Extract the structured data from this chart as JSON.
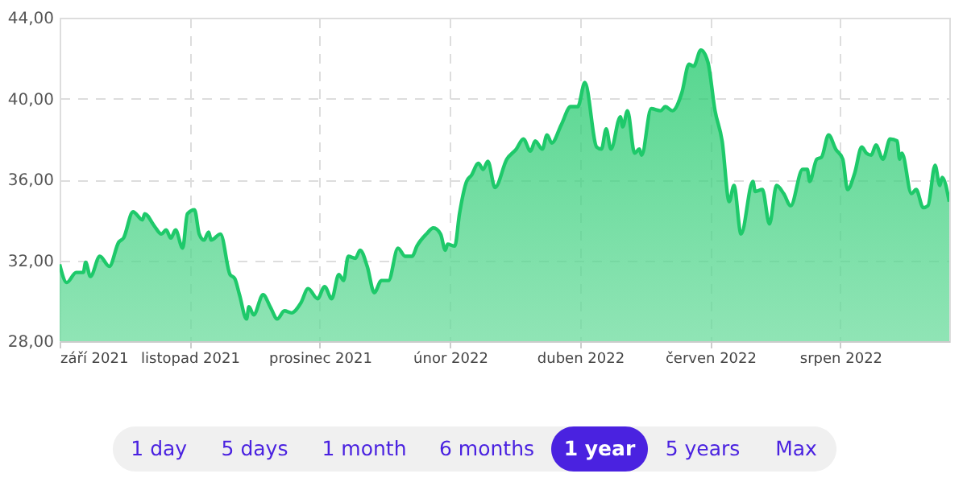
{
  "chart_data": {
    "type": "area",
    "x": [
      "2021-09-08",
      "2021-09-11",
      "2021-09-15",
      "2021-09-18",
      "2021-09-19",
      "2021-09-21",
      "2021-09-25",
      "2021-09-29",
      "2021-10-03",
      "2021-10-05",
      "2021-10-09",
      "2021-10-13",
      "2021-10-14",
      "2021-10-18",
      "2021-10-21",
      "2021-10-23",
      "2021-10-25",
      "2021-10-27",
      "2021-10-30",
      "2021-11-01",
      "2021-11-04",
      "2021-11-06",
      "2021-11-08",
      "2021-11-10",
      "2021-11-11",
      "2021-11-15",
      "2021-11-19",
      "2021-11-21",
      "2021-11-23",
      "2021-11-26",
      "2021-11-27",
      "2021-11-29",
      "2021-12-03",
      "2021-12-06",
      "2021-12-09",
      "2021-12-12",
      "2021-12-15",
      "2021-12-19",
      "2021-12-22",
      "2021-12-26",
      "2021-12-29",
      "2022-01-01",
      "2022-01-04",
      "2022-01-06",
      "2022-01-08",
      "2022-01-11",
      "2022-01-13",
      "2022-01-16",
      "2022-01-19",
      "2022-01-22",
      "2022-01-25",
      "2022-01-29",
      "2022-02-01",
      "2022-02-04",
      "2022-02-06",
      "2022-02-10",
      "2022-02-13",
      "2022-02-16",
      "2022-02-18",
      "2022-02-19",
      "2022-02-22",
      "2022-02-24",
      "2022-02-27",
      "2022-03-01",
      "2022-03-04",
      "2022-03-06",
      "2022-03-08",
      "2022-03-11",
      "2022-03-16",
      "2022-03-20",
      "2022-03-23",
      "2022-03-26",
      "2022-03-28",
      "2022-03-31",
      "2022-04-02",
      "2022-04-04",
      "2022-04-08",
      "2022-04-12",
      "2022-04-15",
      "2022-04-18",
      "2022-04-23",
      "2022-04-25",
      "2022-04-27",
      "2022-04-29",
      "2022-05-03",
      "2022-05-04",
      "2022-05-06",
      "2022-05-09",
      "2022-05-11",
      "2022-05-12",
      "2022-05-16",
      "2022-05-20",
      "2022-05-22",
      "2022-05-25",
      "2022-05-29",
      "2022-06-01",
      "2022-06-03",
      "2022-06-06",
      "2022-06-09",
      "2022-06-12",
      "2022-06-15",
      "2022-06-18",
      "2022-06-20",
      "2022-06-23",
      "2022-06-28",
      "2022-06-29",
      "2022-07-02",
      "2022-07-05",
      "2022-07-08",
      "2022-07-11",
      "2022-07-14",
      "2022-07-19",
      "2022-07-21",
      "2022-07-22",
      "2022-07-25",
      "2022-07-27",
      "2022-07-30",
      "2022-08-02",
      "2022-08-05",
      "2022-08-07",
      "2022-08-10",
      "2022-08-13",
      "2022-08-15",
      "2022-08-17",
      "2022-08-19",
      "2022-08-22",
      "2022-08-25",
      "2022-08-28",
      "2022-08-29",
      "2022-08-30",
      "2022-09-03",
      "2022-09-05",
      "2022-09-08",
      "2022-09-10",
      "2022-09-13",
      "2022-09-15",
      "2022-09-16",
      "2022-09-19"
    ],
    "series": [
      {
        "color": "#1ec96a",
        "values": [
          31.8,
          30.9,
          31.4,
          31.4,
          31.9,
          31.2,
          32.2,
          31.7,
          32.9,
          33.1,
          34.4,
          34.0,
          34.3,
          33.7,
          33.3,
          33.5,
          33.1,
          33.5,
          32.6,
          34.3,
          34.5,
          33.3,
          33.0,
          33.4,
          33.0,
          33.3,
          31.3,
          31.1,
          30.3,
          29.1,
          29.7,
          29.3,
          30.3,
          29.7,
          29.1,
          29.5,
          29.4,
          29.9,
          30.6,
          30.1,
          30.7,
          30.1,
          31.3,
          31.0,
          32.2,
          32.1,
          32.5,
          31.7,
          30.4,
          31.0,
          31.0,
          32.6,
          32.2,
          32.2,
          32.7,
          33.3,
          33.6,
          33.3,
          32.5,
          32.8,
          32.7,
          34.3,
          35.9,
          36.2,
          36.8,
          36.5,
          36.9,
          35.6,
          37.0,
          37.5,
          38.0,
          37.4,
          37.9,
          37.5,
          38.2,
          37.8,
          38.7,
          39.6,
          39.6,
          40.8,
          37.6,
          37.5,
          38.5,
          37.5,
          39.1,
          38.6,
          39.4,
          37.3,
          37.5,
          37.2,
          39.5,
          39.4,
          39.6,
          39.4,
          40.3,
          41.7,
          41.6,
          42.4,
          41.8,
          39.4,
          37.9,
          34.9,
          35.7,
          33.3,
          35.9,
          35.4,
          35.5,
          33.8,
          35.7,
          35.3,
          34.7,
          36.5,
          36.5,
          35.9,
          37.0,
          37.1,
          38.2,
          37.5,
          37.0,
          35.5,
          36.3,
          37.6,
          37.3,
          37.2,
          37.7,
          37.0,
          38.0,
          37.9,
          37.0,
          37.3,
          35.3,
          35.5,
          34.6,
          34.7,
          36.7,
          35.7,
          36.1,
          34.9
        ]
      }
    ],
    "xlim": [
      "2021-09-08",
      "2022-09-19"
    ],
    "xticks": [
      {
        "value": "2021-09-08",
        "label": "září 2021"
      },
      {
        "value": "2021-11-02",
        "label": "listopad 2021"
      },
      {
        "value": "2021-12-27",
        "label": "prosinec 2021"
      },
      {
        "value": "2022-02-20",
        "label": "únor 2022"
      },
      {
        "value": "2022-04-16",
        "label": "duben 2022"
      },
      {
        "value": "2022-06-10",
        "label": "červen 2022"
      },
      {
        "value": "2022-08-04",
        "label": "srpen 2022"
      }
    ],
    "ylim": [
      28,
      44
    ],
    "yticks": [
      {
        "value": 28,
        "label": "28,00"
      },
      {
        "value": 32,
        "label": "32,00"
      },
      {
        "value": 36,
        "label": "36,00"
      },
      {
        "value": 40,
        "label": "40,00"
      },
      {
        "value": 44,
        "label": "44,00"
      }
    ],
    "grid": true,
    "marker": "none",
    "line_style": "solid",
    "annotations": [
      "1 day",
      "5 days",
      "1 month",
      "6 months",
      "1 year",
      "5 years",
      "Max"
    ]
  }
}
